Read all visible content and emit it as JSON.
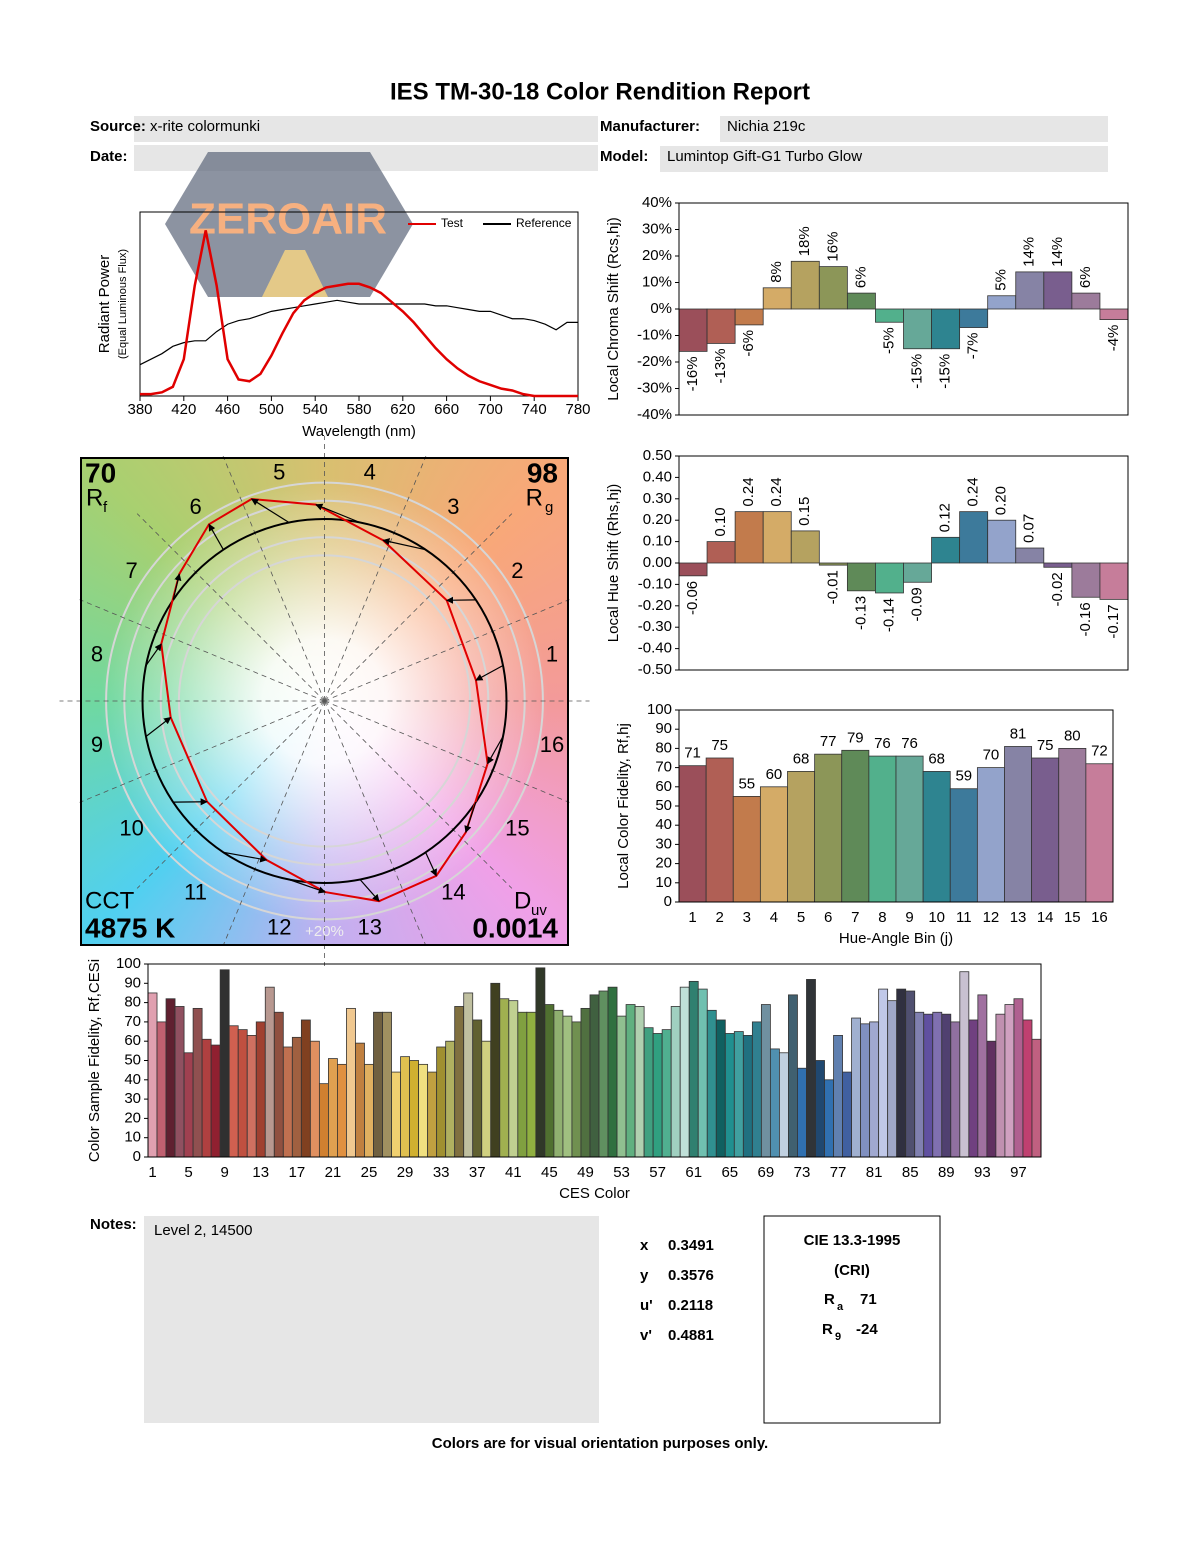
{
  "title": "IES TM-30-18 Color Rendition Report",
  "header": {
    "source_label": "Source:",
    "source": "x-rite colormunki",
    "manufacturer_label": "Manufacturer:",
    "manufacturer": "Nichia 219c",
    "date_label": "Date:",
    "model_label": "Model:",
    "model": "Lumintop Gift-G1 Turbo Glow"
  },
  "watermark": "ZEROAIR",
  "chart_data": [
    {
      "type": "line",
      "xlabel": "Wavelength (nm)",
      "ylabel": "Radiant Power",
      "ylabel_note": "(Equal Luminous Flux)",
      "x": [
        380,
        390,
        400,
        410,
        420,
        430,
        440,
        450,
        460,
        470,
        480,
        490,
        500,
        510,
        520,
        530,
        540,
        550,
        560,
        570,
        580,
        590,
        600,
        610,
        620,
        630,
        640,
        650,
        660,
        670,
        680,
        690,
        700,
        710,
        720,
        730,
        740,
        750,
        760,
        770,
        780
      ],
      "series": [
        {
          "name": "Test",
          "color": "#e00000",
          "values": [
            0.01,
            0.01,
            0.02,
            0.05,
            0.2,
            0.6,
            0.9,
            0.6,
            0.2,
            0.09,
            0.08,
            0.12,
            0.22,
            0.34,
            0.45,
            0.52,
            0.56,
            0.59,
            0.6,
            0.61,
            0.61,
            0.59,
            0.56,
            0.51,
            0.46,
            0.4,
            0.33,
            0.26,
            0.2,
            0.15,
            0.11,
            0.08,
            0.06,
            0.04,
            0.03,
            0.01,
            0,
            0,
            0,
            0,
            0
          ]
        },
        {
          "name": "Reference",
          "color": "#000000",
          "values": [
            0.17,
            0.2,
            0.23,
            0.27,
            0.29,
            0.3,
            0.3,
            0.35,
            0.39,
            0.41,
            0.42,
            0.44,
            0.46,
            0.47,
            0.48,
            0.49,
            0.5,
            0.51,
            0.52,
            0.51,
            0.5,
            0.5,
            0.5,
            0.5,
            0.5,
            0.5,
            0.5,
            0.49,
            0.49,
            0.48,
            0.47,
            0.46,
            0.46,
            0.44,
            0.42,
            0.42,
            0.41,
            0.39,
            0.36,
            0.4,
            0.4
          ]
        }
      ],
      "xlim": [
        380,
        780
      ],
      "xticks": [
        380,
        420,
        460,
        500,
        540,
        580,
        620,
        660,
        700,
        740,
        780
      ],
      "ylim": [
        0,
        1
      ],
      "legend": "upper right"
    },
    {
      "type": "bar",
      "ylabel": "Local Chroma Shift (Rcs,hj)",
      "data_labels": "vertical",
      "values": [
        -16,
        -13,
        -6,
        8,
        18,
        16,
        6,
        -5,
        -15,
        -15,
        -7,
        5,
        14,
        14,
        6,
        -4
      ],
      "value_labels": [
        "-16%",
        "-13%",
        "-6%",
        "8%",
        "18%",
        "16%",
        "6%",
        "-5%",
        "-15%",
        "-15%",
        "-7%",
        "5%",
        "14%",
        "14%",
        "6%",
        "-4%"
      ],
      "colors": [
        "#9b4f5a",
        "#b05f55",
        "#c27b4c",
        "#d4ab67",
        "#b5a260",
        "#8c9658",
        "#5f8a58",
        "#52b08c",
        "#66a898",
        "#2e8490",
        "#3d7a9b",
        "#93a3cb",
        "#8683a5",
        "#795e8e",
        "#9c7b9b",
        "#c67d9a"
      ],
      "ylim": [
        -40,
        40
      ],
      "yticks": [
        {
          "value": -40,
          "label": "-40%"
        },
        {
          "value": -30,
          "label": "-30%"
        },
        {
          "value": -20,
          "label": "-20%"
        },
        {
          "value": -10,
          "label": "-10%"
        },
        {
          "value": 0,
          "label": "0%"
        },
        {
          "value": 10,
          "label": "10%"
        },
        {
          "value": 20,
          "label": "20%"
        },
        {
          "value": 30,
          "label": "30%"
        },
        {
          "value": 40,
          "label": "40%"
        }
      ]
    },
    {
      "type": "bar",
      "ylabel": "Local Hue Shift (Rhs,hj)",
      "data_labels": "vertical",
      "values": [
        -0.06,
        0.1,
        0.24,
        0.24,
        0.15,
        -0.01,
        -0.13,
        -0.14,
        -0.09,
        0.12,
        0.24,
        0.2,
        0.07,
        -0.02,
        -0.16,
        -0.17
      ],
      "value_labels": [
        "-0.06",
        "0.10",
        "0.24",
        "0.24",
        "0.15",
        "-0.01",
        "-0.13",
        "-0.14",
        "-0.09",
        "0.12",
        "0.24",
        "0.20",
        "0.07",
        "-0.02",
        "-0.16",
        "-0.17"
      ],
      "colors": [
        "#9b4f5a",
        "#b05f55",
        "#c27b4c",
        "#d4ab67",
        "#b5a260",
        "#8c9658",
        "#5f8a58",
        "#52b08c",
        "#66a898",
        "#2e8490",
        "#3d7a9b",
        "#93a3cb",
        "#8683a5",
        "#795e8e",
        "#9c7b9b",
        "#c67d9a"
      ],
      "ylim": [
        -0.5,
        0.5
      ],
      "yticks": [
        {
          "value": -0.5,
          "label": "-0.50"
        },
        {
          "value": -0.4,
          "label": "-0.40"
        },
        {
          "value": -0.3,
          "label": "-0.30"
        },
        {
          "value": -0.2,
          "label": "-0.20"
        },
        {
          "value": -0.1,
          "label": "-0.10"
        },
        {
          "value": 0,
          "label": "0.00"
        },
        {
          "value": 0.1,
          "label": "0.10"
        },
        {
          "value": 0.2,
          "label": "0.20"
        },
        {
          "value": 0.3,
          "label": "0.30"
        },
        {
          "value": 0.4,
          "label": "0.40"
        },
        {
          "value": 0.5,
          "label": "0.50"
        }
      ]
    },
    {
      "type": "bar",
      "ylabel": "Local Color Fidelity, Rf,hj",
      "xlabel": "Hue-Angle Bin (j)",
      "data_labels": "horizontal",
      "categories": [
        1,
        2,
        3,
        4,
        5,
        6,
        7,
        8,
        9,
        10,
        11,
        12,
        13,
        14,
        15,
        16
      ],
      "values": [
        71,
        75,
        55,
        60,
        68,
        77,
        79,
        76,
        76,
        68,
        59,
        70,
        81,
        75,
        80,
        72
      ],
      "colors": [
        "#9b4f5a",
        "#b05f55",
        "#c27b4c",
        "#d4ab67",
        "#b5a260",
        "#8c9658",
        "#5f8a58",
        "#52b08c",
        "#66a898",
        "#2e8490",
        "#3d7a9b",
        "#93a3cb",
        "#8683a5",
        "#795e8e",
        "#9c7b9b",
        "#c67d9a"
      ],
      "ylim": [
        0,
        100
      ],
      "yticks": [
        0,
        10,
        20,
        30,
        40,
        50,
        60,
        70,
        80,
        90,
        100
      ]
    },
    {
      "type": "vector",
      "categories": [
        1,
        2,
        3,
        4,
        5,
        6,
        7,
        8,
        9,
        10,
        11,
        12,
        13,
        14,
        15,
        16
      ],
      "rf": 70,
      "rf_label": "R",
      "rf_sub": "f",
      "rg": 98,
      "rg_label": "R",
      "rg_sub": "g",
      "cct_label": "CCT",
      "cct": "4875 K",
      "duv_label": "D",
      "duv_sub": "uv",
      "duv": "0.0014",
      "ring_label": "+20%",
      "test_color": "#e00000",
      "reference_color": "#000000"
    },
    {
      "type": "bar",
      "ylabel": "Color Sample Fidelity, Rf,CESi",
      "xlabel": "CES Color",
      "categories": [
        1,
        null,
        null,
        null,
        5,
        null,
        null,
        null,
        9,
        null,
        null,
        null,
        13,
        null,
        null,
        null,
        17,
        null,
        null,
        null,
        21,
        null,
        null,
        null,
        25,
        null,
        null,
        null,
        29,
        null,
        null,
        null,
        33,
        null,
        null,
        null,
        37,
        null,
        null,
        null,
        41,
        null,
        null,
        null,
        45,
        null,
        null,
        null,
        49,
        null,
        null,
        null,
        53,
        null,
        null,
        null,
        57,
        null,
        null,
        null,
        61,
        null,
        null,
        null,
        65,
        null,
        null,
        null,
        69,
        null,
        null,
        null,
        73,
        null,
        null,
        null,
        77,
        null,
        null,
        null,
        81,
        null,
        null,
        null,
        85,
        null,
        null,
        null,
        89,
        null,
        null,
        null,
        93,
        null,
        null,
        null,
        97,
        null,
        null
      ],
      "values": [
        85,
        70,
        82,
        78,
        54,
        77,
        61,
        58,
        97,
        68,
        66,
        63,
        70,
        88,
        75,
        57,
        62,
        71,
        60,
        38,
        51,
        48,
        77,
        59,
        48,
        75,
        75,
        44,
        52,
        50,
        48,
        44,
        57,
        60,
        78,
        85,
        71,
        60,
        90,
        82,
        81,
        75,
        75,
        98,
        79,
        76,
        73,
        70,
        77,
        84,
        86,
        88,
        73,
        79,
        78,
        67,
        64,
        66,
        78,
        88,
        91,
        87,
        76,
        71,
        64,
        65,
        63,
        70,
        79,
        56,
        54,
        84,
        46,
        92,
        50,
        40,
        63,
        44,
        72,
        69,
        70,
        87,
        81,
        87,
        86,
        75,
        74,
        75,
        74,
        70,
        96,
        71,
        84,
        60,
        74,
        79,
        82,
        71,
        61
      ],
      "colors": [
        "#e0a0b0",
        "#c06070",
        "#602030",
        "#905060",
        "#a04050",
        "#905050",
        "#b04040",
        "#902030",
        "#303030",
        "#d06050",
        "#c05040",
        "#d07060",
        "#a04030",
        "#b89890",
        "#905040",
        "#c07050",
        "#a06040",
        "#804020",
        "#e09060",
        "#d08030",
        "#e0a050",
        "#e09040",
        "#f0c890",
        "#c08040",
        "#e0b060",
        "#706040",
        "#a09060",
        "#f0d070",
        "#e0c050",
        "#d0b030",
        "#f0e080",
        "#c0a040",
        "#a09030",
        "#b0b060",
        "#807040",
        "#c0c0a0",
        "#606030",
        "#d0d080",
        "#404020",
        "#a0b050",
        "#c0d090",
        "#80a040",
        "#90b040",
        "#303828",
        "#507030",
        "#90b070",
        "#a0c080",
        "#709050",
        "#507040",
        "#406040",
        "#609060",
        "#307040",
        "#90c090",
        "#60b080",
        "#b0d0b0",
        "#40a080",
        "#30a080",
        "#50b090",
        "#a0d0c0",
        "#c0e0d8",
        "#308070",
        "#70c0b0",
        "#309090",
        "#106060",
        "#209090",
        "#40a0a0",
        "#207080",
        "#308090",
        "#7090a0",
        "#5090b0",
        "#c0d0e0",
        "#406070",
        "#3070b0",
        "#303438",
        "#204870",
        "#3070b0",
        "#6080b0",
        "#4060a0",
        "#a0b0d0",
        "#8090c0",
        "#a0a8d0",
        "#c0c8e8",
        "#a0a8c8",
        "#303040",
        "#505070",
        "#8080b0",
        "#6050a0",
        "#8070b0",
        "#504070",
        "#9070a0",
        "#c8c0d0",
        "#704080",
        "#a070a0",
        "#603060",
        "#c090b0",
        "#d0a0c0",
        "#b06090",
        "#c04070",
        "#c06080"
      ],
      "ylim": [
        0,
        100
      ],
      "yticks": [
        0,
        10,
        20,
        30,
        40,
        50,
        60,
        70,
        80,
        90,
        100
      ]
    }
  ],
  "notes": {
    "label": "Notes:",
    "text": "Level 2, 14500"
  },
  "chromaticity": {
    "rows": [
      {
        "label": "x",
        "value": 0.3491
      },
      {
        "label": "y",
        "value": 0.3576
      },
      {
        "label": "u'",
        "value": 0.2118
      },
      {
        "label": "v'",
        "value": 0.4881
      }
    ]
  },
  "cri": {
    "title": "CIE 13.3-1995",
    "subtitle": "(CRI)",
    "rows": [
      {
        "symbol": "R",
        "sub": "a",
        "value": 71
      },
      {
        "symbol": "R",
        "sub": "9",
        "value": -24
      }
    ]
  },
  "footer": "Colors are for visual orientation purposes only."
}
